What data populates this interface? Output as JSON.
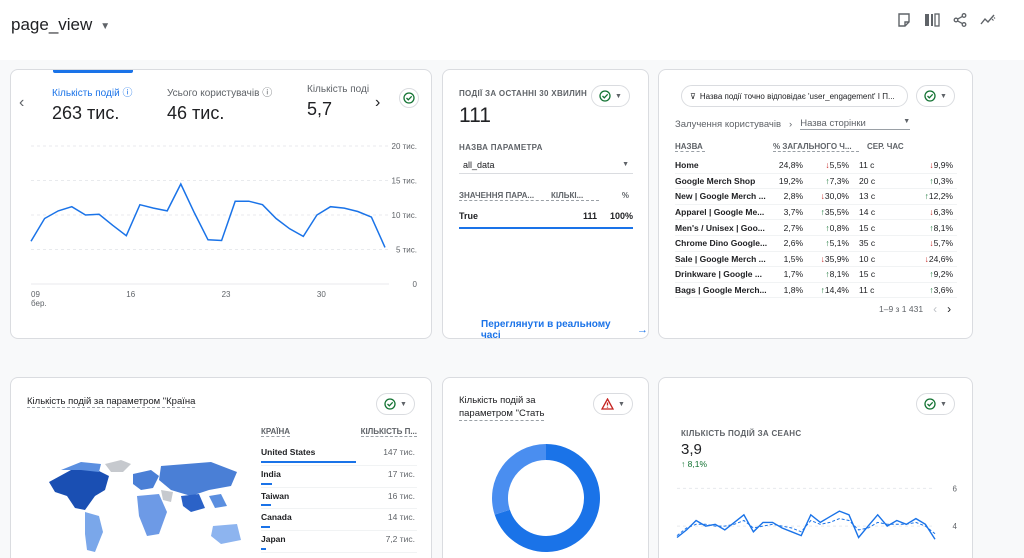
{
  "header": {
    "title": "page_view",
    "icons": [
      "report-icon",
      "compare-icon",
      "share-icon",
      "insights-icon"
    ]
  },
  "card_main": {
    "tabs": [
      {
        "label": "Кількість подій",
        "value": "263 тис."
      },
      {
        "label": "Усього користувачів",
        "value": "46 тис."
      },
      {
        "label": "Кількість поді",
        "value": "5,7"
      }
    ],
    "y_ticks": [
      "20 тис.",
      "15 тис.",
      "10 тис.",
      "5 тис.",
      "0"
    ],
    "x_ticks": [
      "09",
      "16",
      "23",
      "30"
    ],
    "x_sub": "бер."
  },
  "card_realtime": {
    "heading": "ПОДІЇ ЗА ОСТАННІ 30 ХВИЛИН",
    "value": "111",
    "param_label": "НАЗВА ПАРАМЕТРА",
    "param_value": "all_data",
    "col_value": "ЗНАЧЕННЯ ПАРА...",
    "col_count": "КІЛЬКІ...",
    "col_pct": "%",
    "row": {
      "name": "True",
      "count": "111",
      "pct": "100%"
    },
    "link": "Переглянути в реальному часі"
  },
  "card_table": {
    "filter": "Назва події точно відповідає 'user_engagement' І П...",
    "metric_label": "Залучення користувачів",
    "dim_label": "Назва сторінки",
    "headers": [
      "НАЗВА",
      "% ЗАГАЛЬНОГО Ч...",
      "СЕР. ЧАС"
    ],
    "rows": [
      {
        "name": "Home",
        "pct": "24,8%",
        "d1": "5,5%",
        "d1dir": "down",
        "time": "11 с",
        "d2": "9,9%",
        "d2dir": "down"
      },
      {
        "name": "Google Merch Shop",
        "pct": "19,2%",
        "d1": "7,3%",
        "d1dir": "up",
        "time": "20 с",
        "d2": "0,3%",
        "d2dir": "up"
      },
      {
        "name": "New | Google Merch ...",
        "pct": "2,8%",
        "d1": "30,0%",
        "d1dir": "down",
        "time": "13 с",
        "d2": "12,2%",
        "d2dir": "up"
      },
      {
        "name": "Apparel | Google Me...",
        "pct": "3,7%",
        "d1": "35,5%",
        "d1dir": "up",
        "time": "14 с",
        "d2": "6,3%",
        "d2dir": "down"
      },
      {
        "name": "Men's / Unisex | Goo...",
        "pct": "2,7%",
        "d1": "0,8%",
        "d1dir": "up",
        "time": "15 с",
        "d2": "8,1%",
        "d2dir": "up"
      },
      {
        "name": "Chrome Dino Google...",
        "pct": "2,6%",
        "d1": "5,1%",
        "d1dir": "up",
        "time": "35 с",
        "d2": "5,7%",
        "d2dir": "down"
      },
      {
        "name": "Sale | Google Merch ...",
        "pct": "1,5%",
        "d1": "35,9%",
        "d1dir": "down",
        "time": "10 с",
        "d2": "24,6%",
        "d2dir": "down"
      },
      {
        "name": "Drinkware | Google ...",
        "pct": "1,7%",
        "d1": "8,1%",
        "d1dir": "up",
        "time": "15 с",
        "d2": "9,2%",
        "d2dir": "up"
      },
      {
        "name": "Bags | Google Merch...",
        "pct": "1,8%",
        "d1": "14,4%",
        "d1dir": "up",
        "time": "11 с",
        "d2": "3,6%",
        "d2dir": "up"
      }
    ],
    "pagination": "1–9 з 1 431"
  },
  "card_country": {
    "title": "Кількість подій за параметром \"Країна",
    "col_country": "КРАЇНА",
    "col_count": "КІЛЬКІСТЬ П...",
    "rows": [
      {
        "name": "United States",
        "value": "147 тис.",
        "bar": 0.95
      },
      {
        "name": "India",
        "value": "17 тис.",
        "bar": 0.11
      },
      {
        "name": "Taiwan",
        "value": "16 тис.",
        "bar": 0.1
      },
      {
        "name": "Canada",
        "value": "14 тис.",
        "bar": 0.09
      },
      {
        "name": "Japan",
        "value": "7,2 тис.",
        "bar": 0.05
      }
    ]
  },
  "card_gender": {
    "title_line1": "Кількість подій за",
    "title_line2": "параметром \"Стать"
  },
  "card_session": {
    "heading": "КІЛЬКІСТЬ ПОДІЙ ЗА СЕАНС",
    "value": "3,9",
    "delta": "8,1%",
    "y_ticks": [
      "6",
      "4"
    ]
  },
  "chart_data": [
    {
      "type": "line",
      "title": "",
      "x": [
        "09 бер.",
        "",
        "",
        "",
        "",
        "",
        "",
        "16",
        "",
        "",
        "",
        "",
        "",
        "",
        "23",
        "",
        "",
        "",
        "",
        "",
        "",
        "30",
        "",
        "",
        "",
        "",
        ""
      ],
      "series": [
        {
          "values": [
            6.2,
            9.5,
            10.6,
            11.2,
            10.0,
            10.1,
            8.5,
            7.0,
            11.5,
            11.0,
            10.6,
            14.5,
            10.3,
            6.4,
            6.3,
            12.0,
            12.0,
            11.5,
            9.5,
            8.0,
            6.9,
            10.0,
            11.2,
            11.0,
            10.5,
            9.7,
            5.3
          ]
        }
      ],
      "ylim": [
        0,
        20
      ],
      "y_ticks": [
        "20 тис.",
        "15 тис.",
        "10 тис.",
        "5 тис.",
        "0"
      ]
    },
    {
      "type": "line",
      "title": "",
      "series": [
        {
          "values": [
            3.4,
            3.8,
            4.3,
            4.0,
            4.1,
            3.8,
            4.2,
            4.6,
            3.7,
            4.2,
            4.2,
            3.9,
            3.7,
            3.5,
            4.6,
            4.2,
            4.5,
            4.8,
            4.6,
            3.4,
            4.0,
            4.6,
            4.0,
            4.3,
            4.1,
            4.4,
            4.1,
            3.3
          ]
        },
        {
          "values": [
            3.5,
            3.9,
            4.1,
            4.1,
            4.0,
            4.0,
            4.1,
            4.3,
            3.9,
            4.0,
            4.1,
            4.0,
            3.9,
            3.7,
            4.3,
            4.1,
            4.2,
            4.4,
            4.3,
            3.8,
            3.9,
            4.2,
            4.1,
            4.1,
            4.1,
            4.2,
            4.0,
            3.6
          ]
        }
      ],
      "ylim": [
        3,
        6.5
      ],
      "y_ticks": [
        "6",
        "4"
      ]
    },
    {
      "type": "pie",
      "title": "",
      "values": [
        0.7,
        0.3
      ]
    }
  ]
}
